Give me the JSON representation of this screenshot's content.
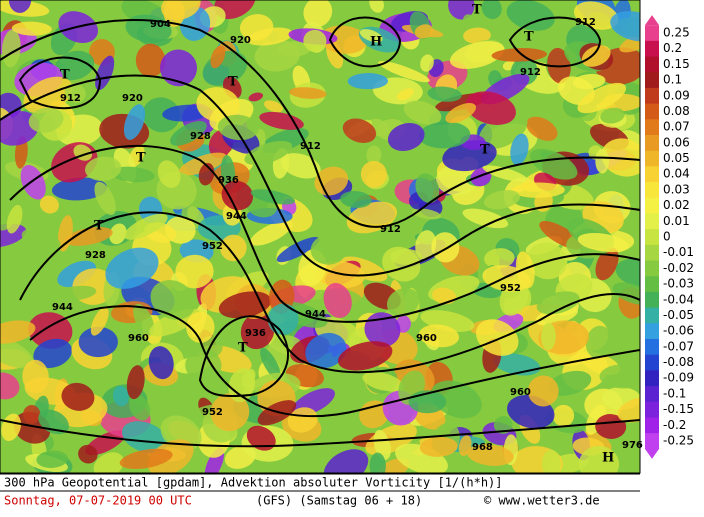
{
  "colorbar": {
    "labels": [
      "0.25",
      "0.2",
      "0.15",
      "0.1",
      "0.09",
      "0.08",
      "0.07",
      "0.06",
      "0.05",
      "0.04",
      "0.03",
      "0.02",
      "0.01",
      "0",
      "-0.01",
      "-0.02",
      "-0.03",
      "-0.04",
      "-0.05",
      "-0.06",
      "-0.07",
      "-0.08",
      "-0.09",
      "-0.1",
      "-0.15",
      "-0.2",
      "-0.25"
    ],
    "colors": [
      "#e8408c",
      "#c8104e",
      "#b0102c",
      "#a01c1c",
      "#c03a1c",
      "#d45a18",
      "#e07a1a",
      "#e89a22",
      "#f0b62a",
      "#f8d232",
      "#f8e63a",
      "#f4f044",
      "#e4f04a",
      "#c8e440",
      "#a6d642",
      "#86ca40",
      "#64be44",
      "#44b058",
      "#34b0a4",
      "#34a0e0",
      "#2470e0",
      "#2244d0",
      "#3422c0",
      "#5a22d0",
      "#7c22dc",
      "#a022e8",
      "#c040f0"
    ]
  },
  "map_labels": [
    "904",
    "912",
    "920",
    "928",
    "936",
    "944",
    "952",
    "960",
    "968",
    "976",
    "H",
    "T"
  ],
  "footer": {
    "title": "300 hPa Geopotential [gpdam], Advektion absoluter Vorticity [1/(h*h)]",
    "date": "Sonntag, 07-07-2019  00 UTC",
    "model": "(GFS)  (Samstag 06 + 18)",
    "credit": "© www.wetter3.de"
  }
}
